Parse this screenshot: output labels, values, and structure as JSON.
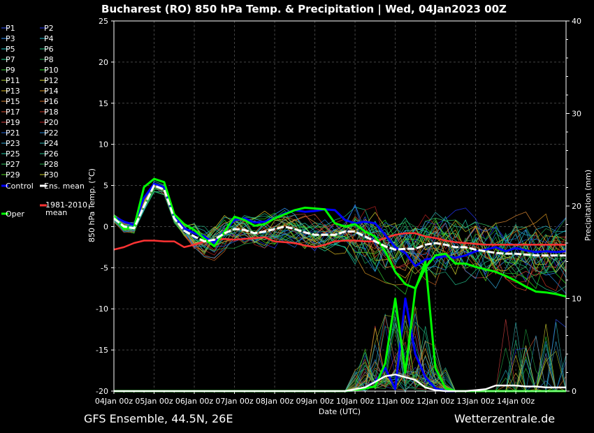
{
  "chart_data": {
    "type": "line",
    "title": "Bucharest  (RO)  850 hPa Temp. & Precipitation | Wed, 04Jan2023 00Z",
    "ylabel": "850 hPa Temp. (°C)",
    "y2label": "Precipitation (mm)",
    "xlabel": "Date (UTC)",
    "footer_left": "GFS Ensemble, 44.5N, 26E",
    "footer_right": "Wetterzentrale.de",
    "ylim": [
      -20,
      25
    ],
    "y2lim": [
      0,
      40
    ],
    "yticks": [
      "25",
      "20",
      "15",
      "10",
      "5",
      "0",
      "-5",
      "-10",
      "-15",
      "-20"
    ],
    "y2ticks": [
      "40",
      "30",
      "20",
      "10",
      "0"
    ],
    "xticks": [
      "04Jan 00z",
      "05Jan 00z",
      "06Jan 00z",
      "07Jan 00z",
      "08Jan 00z",
      "09Jan 00z",
      "10Jan 00z",
      "11Jan 00z",
      "12Jan 00z",
      "13Jan 00z",
      "14Jan 00z"
    ],
    "grid": true,
    "legend_placement": "left",
    "legend": [
      {
        "name": "P1",
        "color": "#3355ff"
      },
      {
        "name": "P2",
        "color": "#2233ee"
      },
      {
        "name": "P3",
        "color": "#3399ff"
      },
      {
        "name": "P4",
        "color": "#22bbcc"
      },
      {
        "name": "P5",
        "color": "#22cccc"
      },
      {
        "name": "P6",
        "color": "#22cc88"
      },
      {
        "name": "P7",
        "color": "#22dd99"
      },
      {
        "name": "P8",
        "color": "#22aa55"
      },
      {
        "name": "P9",
        "color": "#33cc33"
      },
      {
        "name": "P10",
        "color": "#22dd22"
      },
      {
        "name": "P11",
        "color": "#aacc33"
      },
      {
        "name": "P12",
        "color": "#dddd33"
      },
      {
        "name": "P13",
        "color": "#ddbb22"
      },
      {
        "name": "P14",
        "color": "#dd9922"
      },
      {
        "name": "P15",
        "color": "#dd8833"
      },
      {
        "name": "P16",
        "color": "#cc6622"
      },
      {
        "name": "P17",
        "color": "#dd5533"
      },
      {
        "name": "P18",
        "color": "#cc3322"
      },
      {
        "name": "P19",
        "color": "#dd4444"
      },
      {
        "name": "P20",
        "color": "#bb2222"
      },
      {
        "name": "P21",
        "color": "#2266dd"
      },
      {
        "name": "P22",
        "color": "#2288dd"
      },
      {
        "name": "P23",
        "color": "#33aadd"
      },
      {
        "name": "P24",
        "color": "#33bbbb"
      },
      {
        "name": "P25",
        "color": "#22ccaa"
      },
      {
        "name": "P26",
        "color": "#22bb88"
      },
      {
        "name": "P27",
        "color": "#33cc66"
      },
      {
        "name": "P28",
        "color": "#22aa44"
      },
      {
        "name": "P29",
        "color": "#55dd22"
      },
      {
        "name": "P30",
        "color": "#cccc22"
      },
      {
        "name": "Control",
        "color": "#0000ff"
      },
      {
        "name": "Ens. mean",
        "color": "#ffffff"
      },
      {
        "name": "Oper",
        "color": "#00ff00"
      },
      {
        "name": "1981-2010 mean",
        "color": "#ff3333"
      }
    ],
    "days_index": [
      0,
      0.25,
      0.5,
      0.75,
      1,
      1.25,
      1.5,
      1.75,
      2,
      2.25,
      2.5,
      2.75,
      3,
      3.25,
      3.5,
      3.75,
      4,
      4.25,
      4.5,
      4.75,
      5,
      5.25,
      5.5,
      5.75,
      6,
      6.25,
      6.5,
      6.75,
      7,
      7.25,
      7.5,
      7.75,
      8,
      8.25,
      8.5,
      8.75,
      9,
      9.25,
      9.5,
      9.75,
      10,
      10.25,
      10.5,
      10.75,
      11,
      11.25
    ],
    "series": [
      {
        "name": "Ens. mean",
        "role": "mean_temp",
        "values": [
          1.0,
          0,
          -0.2,
          2.5,
          5.0,
          4.5,
          1.0,
          -0.5,
          -1.2,
          -1.8,
          -1.6,
          -0.8,
          -0.3,
          -0.4,
          -0.8,
          -0.6,
          -0.3,
          0,
          -0.3,
          -0.7,
          -1.0,
          -1.0,
          -1.0,
          -0.6,
          -0.6,
          -1.2,
          -1.8,
          -2.4,
          -2.8,
          -2.7,
          -2.7,
          -2.2,
          -2.0,
          -2.2,
          -2.5,
          -2.5,
          -2.8,
          -3.0,
          -3.2,
          -3.3,
          -3.3,
          -3.4,
          -3.5,
          -3.5,
          -3.5,
          -3.5
        ]
      },
      {
        "name": "Control",
        "role": "control_temp",
        "values": [
          1.2,
          0.6,
          0.2,
          3.5,
          5.2,
          4.8,
          1.2,
          -0.2,
          -0.8,
          -1.2,
          -2.0,
          -0.5,
          0.8,
          1.0,
          0.5,
          0.6,
          1.0,
          1.6,
          2.0,
          1.8,
          1.9,
          2.1,
          2.0,
          0.8,
          0.4,
          0.6,
          0.4,
          -1.0,
          -2.5,
          -3.2,
          -4.8,
          -4.0,
          -3.8,
          -3.6,
          -3.8,
          -3.5,
          -3.0,
          -2.8,
          -2.5,
          -3.0,
          -2.6,
          -2.9,
          -3.1,
          -3.0,
          -3.1,
          -3.0
        ]
      },
      {
        "name": "Oper",
        "role": "oper_temp",
        "values": [
          1.3,
          -0.3,
          -0.1,
          4.8,
          5.8,
          5.4,
          1.5,
          0.3,
          -0.4,
          -1.5,
          -2.4,
          -0.6,
          1.2,
          0.8,
          0.1,
          0.3,
          1.0,
          1.5,
          2.0,
          2.3,
          2.2,
          2.1,
          0.4,
          0.0,
          0.3,
          -0.6,
          -1.2,
          -3.0,
          -5.5,
          -7.0,
          -7.5,
          -5.0,
          -3.5,
          -3.3,
          -4.5,
          -4.5,
          -4.9,
          -5.2,
          -5.5,
          -6.0,
          -6.6,
          -7.3,
          -7.9,
          -8.0,
          -8.2,
          -8.5
        ]
      },
      {
        "name": "1981-2010 mean",
        "role": "clim_temp",
        "values": [
          -2.8,
          -2.5,
          -2.0,
          -1.7,
          -1.7,
          -1.8,
          -1.8,
          -2.5,
          -2.2,
          -1.8,
          -1.6,
          -1.5,
          -1.6,
          -1.5,
          -1.4,
          -1.3,
          -1.8,
          -1.9,
          -2.0,
          -2.3,
          -2.5,
          -2.2,
          -1.8,
          -1.7,
          -1.7,
          -1.8,
          -1.8,
          -1.4,
          -1.0,
          -0.8,
          -0.8,
          -1.2,
          -1.4,
          -1.7,
          -1.9,
          -2.0,
          -2.1,
          -2.2,
          -2.2,
          -2.2,
          -2.2,
          -2.2,
          -2.2,
          -2.2,
          -2.2,
          -2.2
        ]
      },
      {
        "name": "Ens. mean precip",
        "role": "mean_precip",
        "values": [
          0,
          0,
          0,
          0,
          0,
          0,
          0,
          0,
          0,
          0,
          0,
          0,
          0,
          0,
          0,
          0,
          0,
          0,
          0,
          0,
          0,
          0,
          0,
          0,
          0.2,
          0.4,
          1.0,
          1.6,
          1.8,
          1.5,
          1.2,
          0.4,
          0.1,
          0,
          0,
          0,
          0.1,
          0.2,
          0.6,
          0.6,
          0.6,
          0.5,
          0.5,
          0.4,
          0.4,
          0.4
        ]
      },
      {
        "name": "Control precip",
        "role": "control_precip",
        "values": [
          0,
          0,
          0,
          0,
          0,
          0,
          0,
          0,
          0,
          0,
          0,
          0,
          0,
          0,
          0,
          0,
          0,
          0,
          0,
          0,
          0,
          0,
          0,
          0,
          0.1,
          0.4,
          1.0,
          2.5,
          0.2,
          10.0,
          4.0,
          1.5,
          0.3,
          0,
          0,
          0,
          0,
          0,
          0,
          0,
          0,
          0,
          0,
          0,
          0,
          0
        ]
      },
      {
        "name": "Oper precip",
        "role": "oper_precip",
        "values": [
          0,
          0,
          0,
          0,
          0,
          0,
          0,
          0,
          0,
          0,
          0,
          0,
          0,
          0,
          0,
          0,
          0,
          0,
          0,
          0,
          0,
          0,
          0,
          0,
          0.1,
          0.3,
          0.5,
          3.0,
          10.0,
          2.0,
          11.0,
          14.0,
          2.5,
          0.3,
          0,
          0,
          0,
          0,
          0,
          0,
          0,
          0,
          0,
          0,
          0,
          0
        ]
      }
    ]
  }
}
